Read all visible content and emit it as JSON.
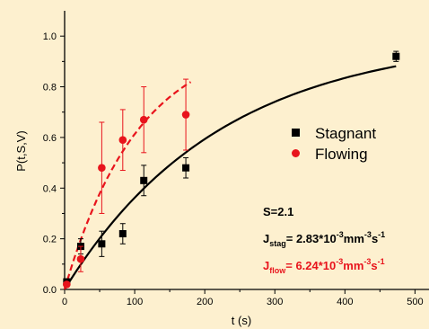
{
  "chart_data": {
    "type": "scatter",
    "xlabel": "t (s)",
    "ylabel": "P(t,S,V)",
    "xlim": [
      0,
      520
    ],
    "ylim": [
      0,
      1.1
    ],
    "x_ticks": [
      0,
      100,
      200,
      300,
      400,
      500
    ],
    "y_ticks": [
      0.0,
      0.2,
      0.4,
      0.6,
      0.8,
      1.0
    ],
    "y_tick_labels": [
      "0.0",
      "0.2",
      "0.4",
      "0.6",
      "0.8",
      "1.0"
    ],
    "grid": false,
    "legend_position": "right",
    "series": [
      {
        "name": "Stagnant",
        "color": "#000000",
        "marker": "square",
        "x": [
          3,
          23,
          53,
          83,
          113,
          173,
          473
        ],
        "y": [
          0.03,
          0.17,
          0.18,
          0.22,
          0.43,
          0.48,
          0.92
        ],
        "err": [
          0.01,
          0.03,
          0.05,
          0.04,
          0.06,
          0.04,
          0.02
        ],
        "fit": {
          "style": "solid",
          "x_range": [
            0,
            473
          ],
          "k": 0.0045,
          "a": 1.0
        }
      },
      {
        "name": "Flowing",
        "color": "#e8141c",
        "marker": "circle",
        "x": [
          3,
          23,
          53,
          83,
          113,
          173
        ],
        "y": [
          0.02,
          0.12,
          0.48,
          0.59,
          0.67,
          0.69
        ],
        "err": [
          0.01,
          0.05,
          0.18,
          0.12,
          0.13,
          0.14
        ],
        "fit": {
          "style": "dashed",
          "x_range": [
            0,
            180
          ],
          "k": 0.0095,
          "a": 1.0
        }
      }
    ],
    "annotations": {
      "s_value": "S=2.1",
      "stag_prefix": "J",
      "stag_sub": "stag",
      "stag_mid": "= 2.83*10",
      "stag_exp": "-3",
      "stag_unit": "mm",
      "stag_unit_exp": "-3",
      "stag_s": "s",
      "stag_s_exp": "-1",
      "flow_prefix": "J",
      "flow_sub": "flow",
      "flow_mid": "= 6.24*10",
      "flow_exp": "-3",
      "flow_unit": "mm",
      "flow_unit_exp": "-3",
      "flow_s": "s",
      "flow_s_exp": "-1"
    }
  }
}
